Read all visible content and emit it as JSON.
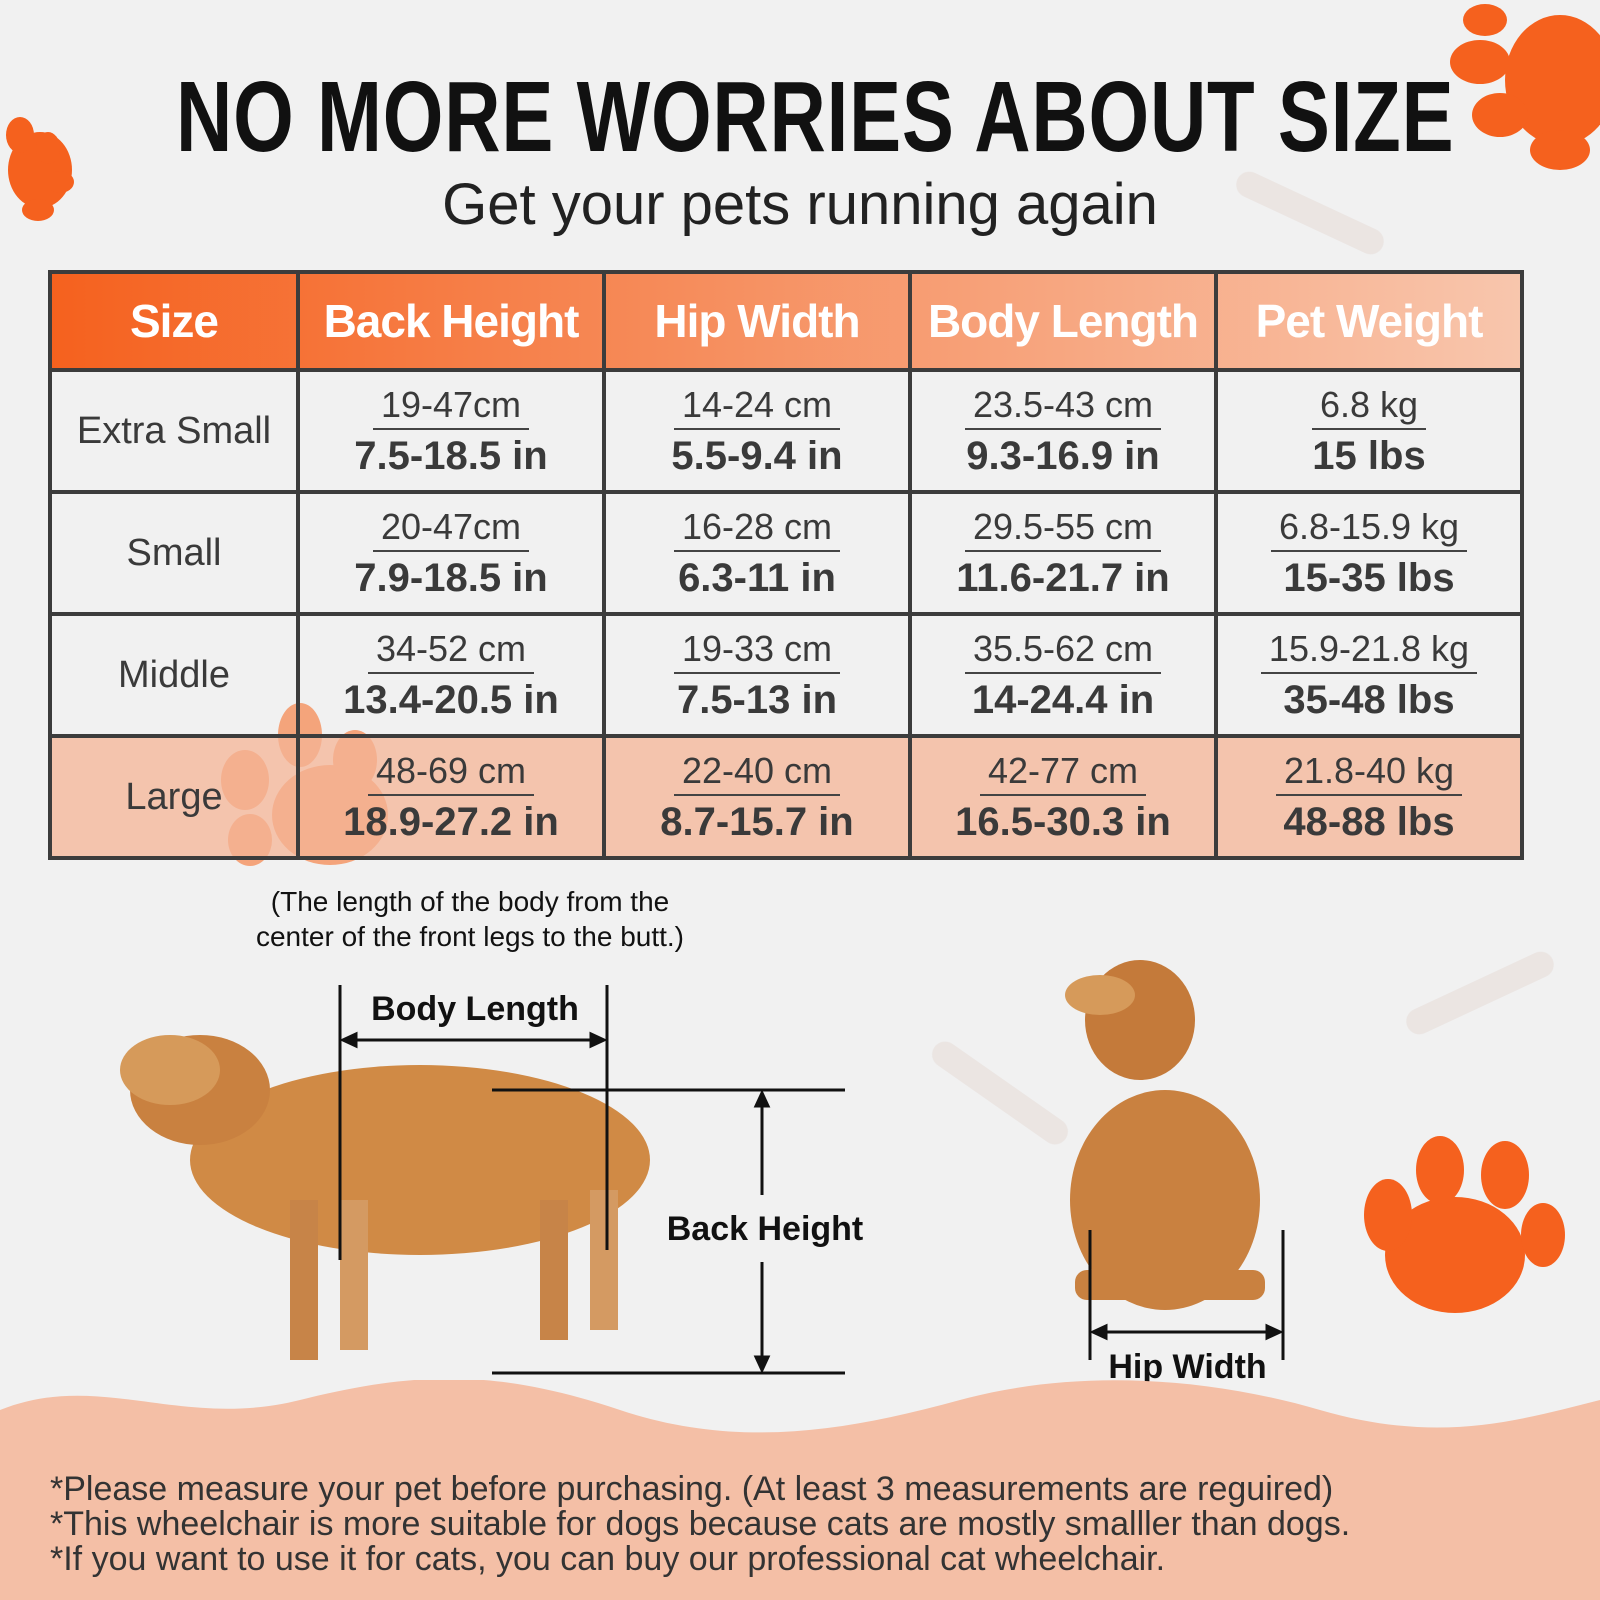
{
  "title": "NO MORE WORRIES ABOUT SIZE",
  "subtitle": "Get your pets running again",
  "table": {
    "headers": [
      "Size",
      "Back Height",
      "Hip Width",
      "Body Length",
      "Pet Weight"
    ],
    "rows": [
      {
        "size": "Extra Small",
        "cells": [
          [
            "19-47cm",
            "7.5-18.5 in"
          ],
          [
            "14-24 cm",
            "5.5-9.4 in"
          ],
          [
            "23.5-43 cm",
            "9.3-16.9 in"
          ],
          [
            "6.8 kg",
            "15 lbs"
          ]
        ]
      },
      {
        "size": "Small",
        "cells": [
          [
            "20-47cm",
            "7.9-18.5 in"
          ],
          [
            "16-28 cm",
            "6.3-11 in"
          ],
          [
            "29.5-55 cm",
            "11.6-21.7 in"
          ],
          [
            "6.8-15.9 kg",
            "15-35 lbs"
          ]
        ]
      },
      {
        "size": "Middle",
        "cells": [
          [
            "34-52 cm",
            "13.4-20.5 in"
          ],
          [
            "19-33 cm",
            "7.5-13 in"
          ],
          [
            "35.5-62 cm",
            "14-24.4 in"
          ],
          [
            "15.9-21.8 kg",
            "35-48 lbs"
          ]
        ]
      },
      {
        "size": "Large",
        "cells": [
          [
            "48-69 cm",
            "18.9-27.2 in"
          ],
          [
            "22-40 cm",
            "8.7-15.7 in"
          ],
          [
            "42-77 cm",
            "16.5-30.3 in"
          ],
          [
            "21.8-40 kg",
            "48-88 lbs"
          ]
        ]
      }
    ]
  },
  "diagram": {
    "body_length_note": [
      "(The length of the body from the",
      "center of the front legs to the butt.)"
    ],
    "body_length_label": "Body Length",
    "back_height_label": "Back Height",
    "hip_width_label": "Hip Width"
  },
  "footer": [
    "*Please measure your pet before purchasing. (At least 3 measurements are reguired)",
    "*This wheelchair is more suitable for dogs because cats are mostly smalller than dogs.",
    "*If you want to use it for cats, you can buy our professional cat wheelchair."
  ],
  "colors": {
    "accent": "#f5611e",
    "light_accent": "#f8c6ad",
    "footer_bg": "#f4bfa6"
  }
}
